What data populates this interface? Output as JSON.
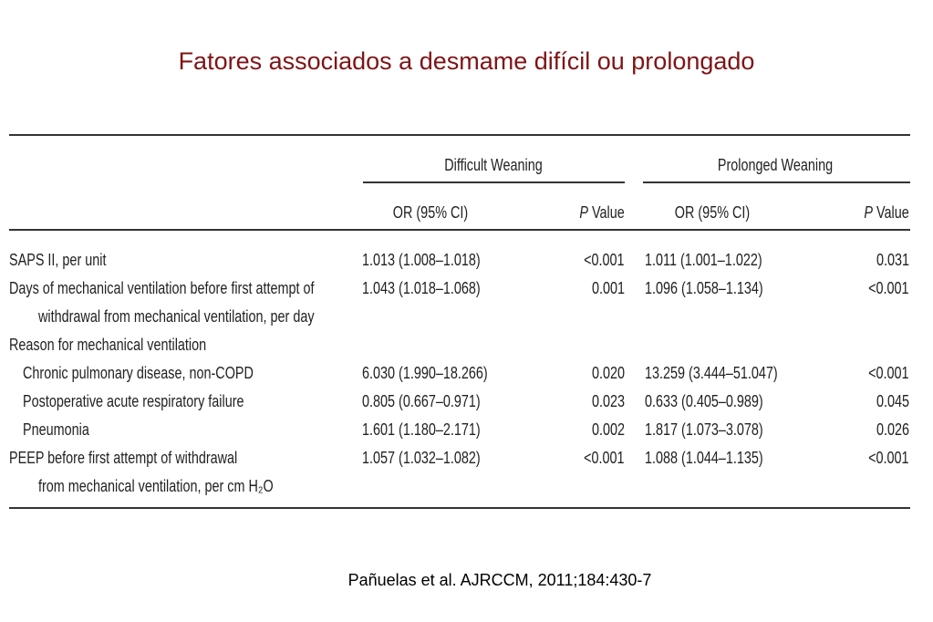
{
  "title": "Fatores associados a desmame difícil ou prolongado",
  "table": {
    "groups": [
      "Difficult Weaning",
      "Prolonged Weaning"
    ],
    "columns": [
      "OR (95% CI)",
      "P Value",
      "OR (95% CI)",
      "P Value"
    ],
    "rows": [
      {
        "label": [
          "SAPS II, per unit"
        ],
        "cells": [
          "1.013 (1.008–1.018)",
          "<0.001",
          "1.011 (1.001–1.022)",
          "0.031"
        ]
      },
      {
        "label": [
          "Days of mechanical ventilation before first attempt of",
          "withdrawal from mechanical ventilation, per day"
        ],
        "cells": [
          "1.043 (1.018–1.068)",
          "0.001",
          "1.096 (1.058–1.134)",
          "<0.001"
        ]
      },
      {
        "label": [
          "Reason for mechanical ventilation"
        ],
        "rows": [
          {
            "label": [
              "Chronic pulmonary disease, non-COPD"
            ],
            "cells": [
              "6.030 (1.990–18.266)",
              "0.020",
              "13.259 (3.444–51.047)",
              "<0.001"
            ]
          },
          {
            "label": [
              "Postoperative acute respiratory failure"
            ],
            "cells": [
              "0.805 (0.667–0.971)",
              "0.023",
              "0.633 (0.405–0.989)",
              "0.045"
            ]
          },
          {
            "label": [
              "Pneumonia"
            ],
            "cells": [
              "1.601 (1.180–2.171)",
              "0.002",
              "1.817 (1.073–3.078)",
              "0.026"
            ]
          }
        ]
      },
      {
        "label": [
          "PEEP before first attempt of withdrawal",
          "from mechanical ventilation, per cm H₂O"
        ],
        "cells": [
          "1.057 (1.032–1.082)",
          "<0.001",
          "1.088 (1.044–1.135)",
          "<0.001"
        ]
      }
    ]
  },
  "citation": "Pañuelas et al. AJRCCM, 2011;184:430-7"
}
